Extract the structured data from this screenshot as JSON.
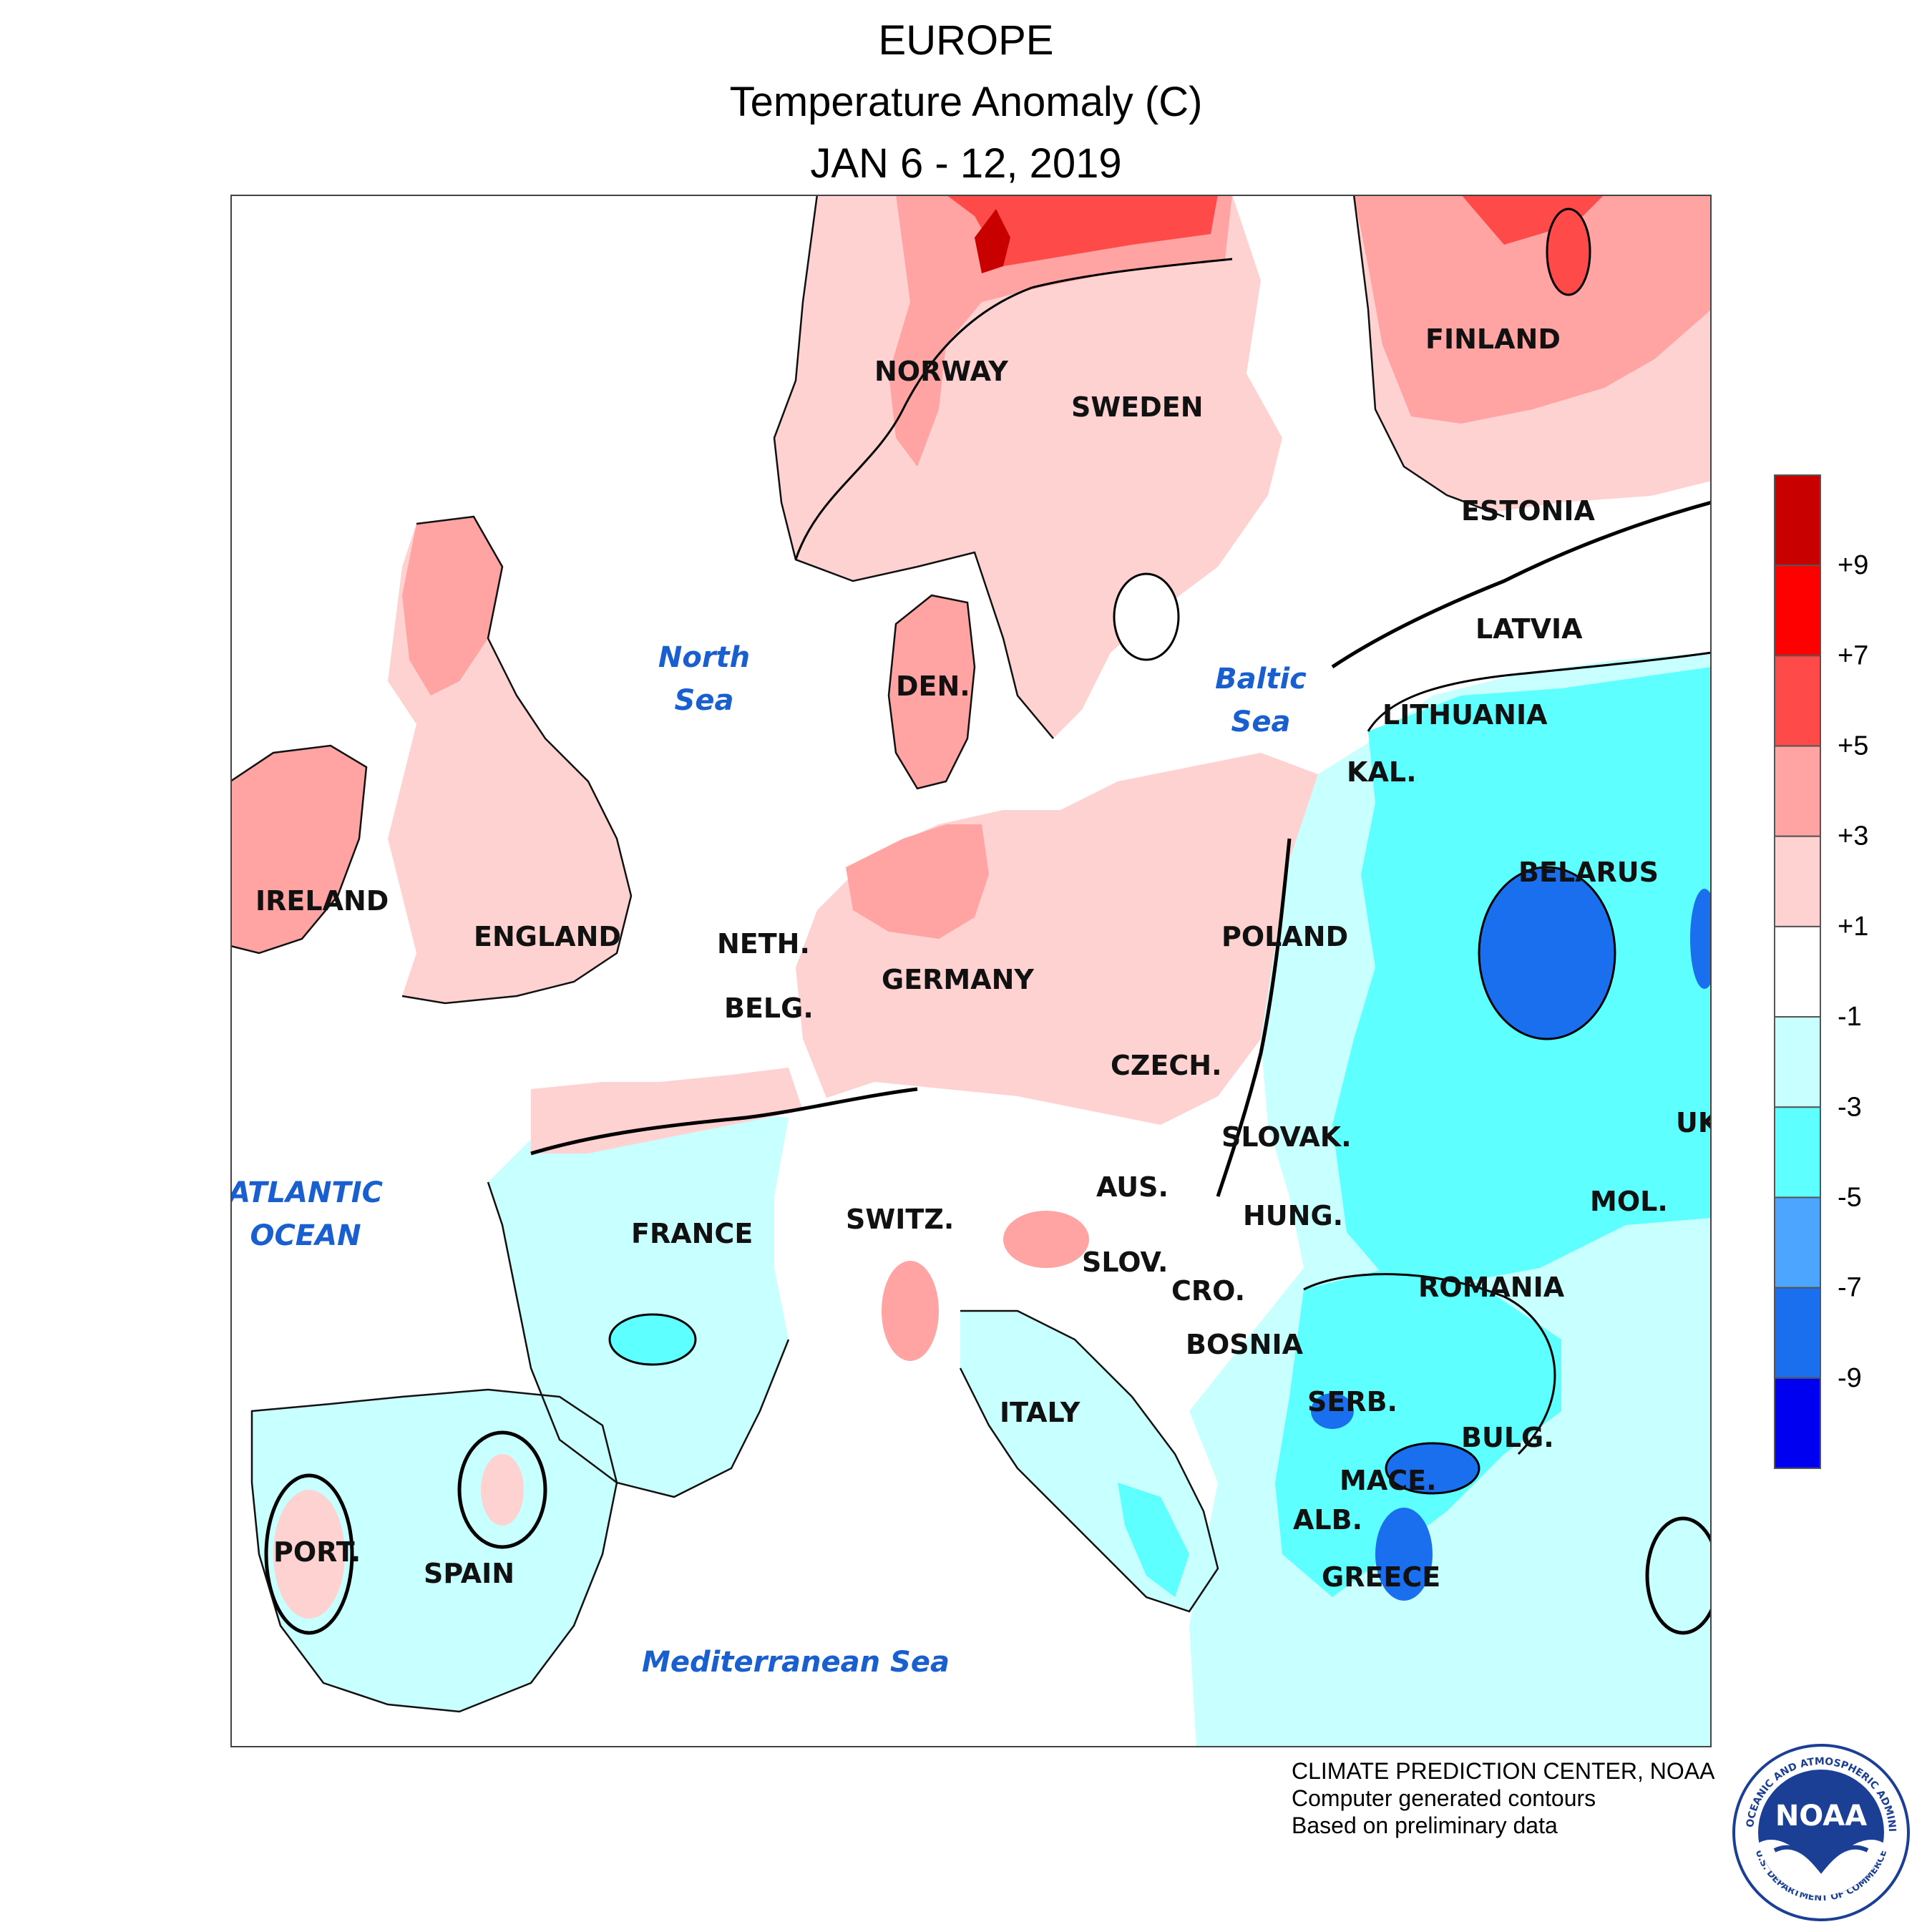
{
  "title": {
    "line1": "EUROPE",
    "line2": "Temperature Anomaly (C)",
    "line3": "JAN 6 - 12, 2019"
  },
  "countries": [
    "NORWAY",
    "SWEDEN",
    "FINLAND",
    "ESTONIA",
    "LATVIA",
    "LITHUANIA",
    "KAL.",
    "DEN.",
    "IRELAND",
    "ENGLAND",
    "NETH.",
    "BELG.",
    "GERMANY",
    "POLAND",
    "BELARUS",
    "CZECH.",
    "SLOVAK.",
    "UK",
    "MOL.",
    "AUS.",
    "HUNG.",
    "FRANCE",
    "SWITZ.",
    "SLOV.",
    "CRO.",
    "ROMANIA",
    "BOSNIA",
    "SERB.",
    "BULG.",
    "ITALY",
    "MACE.",
    "ALB.",
    "GREECE",
    "PORT.",
    "SPAIN"
  ],
  "water_bodies": {
    "north_sea": [
      "North",
      "Sea"
    ],
    "baltic_sea": [
      "Baltic",
      "Sea"
    ],
    "atlantic": [
      "ATLANTIC",
      "OCEAN"
    ],
    "mediterranean": "Mediterranean Sea"
  },
  "legend": {
    "labels": [
      "+9",
      "+7",
      "+5",
      "+3",
      "+1",
      "-1",
      "-3",
      "-5",
      "-7",
      "-9"
    ],
    "colors": [
      "#c80000",
      "#ff0000",
      "#ff4a4a",
      "#ffa3a3",
      "#ffd2d2",
      "#ffffff",
      "#c8ffff",
      "#5effff",
      "#4ca6ff",
      "#1a6fee",
      "#0000f0"
    ]
  },
  "credits": {
    "line1": "CLIMATE PREDICTION CENTER, NOAA",
    "line2": "Computer generated contours",
    "line3": "Based on preliminary data"
  },
  "logo": {
    "text": "NOAA",
    "ring_text": "NATIONAL OCEANIC AND ATMOSPHERIC ADMINISTRATION",
    "ring_text_bottom": "U.S. DEPARTMENT OF COMMERCE",
    "icon": "noaa-seagull-logo"
  }
}
